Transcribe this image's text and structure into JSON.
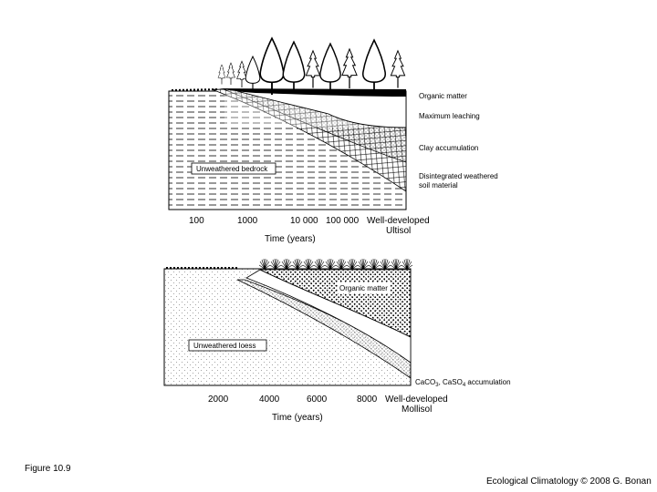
{
  "figure_label": "Figure 10.9",
  "credit": "Ecological Climatology © 2008 G. Bonan",
  "top_panel": {
    "labels": {
      "organic_matter": "Organic matter",
      "maximum_leaching": "Maximum leaching",
      "clay_accumulation": "Clay accumulation",
      "unweathered": "Unweathered bedrock",
      "disintegrated_1": "Disintegrated weathered",
      "disintegrated_2": "soil material"
    },
    "ticks": [
      "100",
      "1000",
      "10 000",
      "100 000"
    ],
    "end_label_1": "Well-developed",
    "end_label_2": "Ultisol",
    "axis_label": "Time (years)"
  },
  "bottom_panel": {
    "labels": {
      "organic_matter": "Organic matter",
      "unweathered": "Unweathered loess",
      "caco3_prefix": "CaCO",
      "caco3_sub1": "3",
      "caco3_mid": ", CaSO",
      "caco3_sub2": "4",
      "caco3_suffix": " accumulation"
    },
    "ticks": [
      "2000",
      "4000",
      "6000",
      "8000"
    ],
    "end_label_1": "Well-developed",
    "end_label_2": "Mollisol",
    "axis_label": "Time (years)"
  }
}
